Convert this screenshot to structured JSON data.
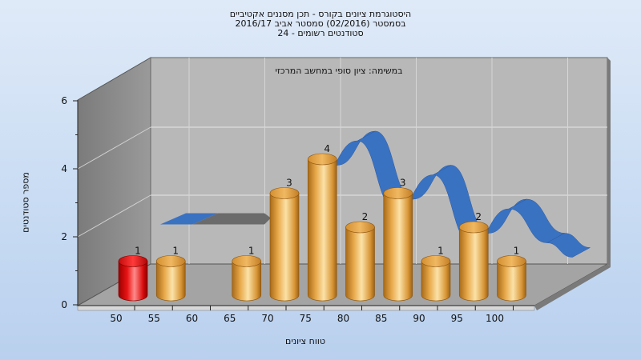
{
  "chart_data": {
    "type": "bar",
    "title_lines": [
      "היסטוגרמת ציונים בקורס - תכן מסננים אקטיביים",
      "בסמסטר  (02/2016)  סמסטר אביב 2016/17",
      "סטודנטים רשומים - 24"
    ],
    "subtitle": "במשימה: ציון סופי במחשב המרכזי",
    "xlabel": "טווח ציונים",
    "ylabel": "מספר סטודנטים",
    "ylim": [
      0,
      6
    ],
    "y_ticks": [
      "0",
      "2",
      "4",
      "6"
    ],
    "x_ticks": [
      "50",
      "55",
      "60",
      "65",
      "70",
      "75",
      "80",
      "85",
      "90",
      "95",
      "100"
    ],
    "series": [
      {
        "values": [
          {
            "x": 50,
            "y": 1,
            "label": "1"
          },
          {
            "x": 55,
            "y": 1,
            "label": "1"
          },
          {
            "x": 65,
            "y": 1,
            "label": "1"
          },
          {
            "x": 70,
            "y": 3,
            "label": "3"
          },
          {
            "x": 75,
            "y": 4,
            "label": "4"
          },
          {
            "x": 80,
            "y": 2,
            "label": "2"
          },
          {
            "x": 85,
            "y": 3,
            "label": "3"
          },
          {
            "x": 90,
            "y": 1,
            "label": "1"
          },
          {
            "x": 95,
            "y": 2,
            "label": "2"
          },
          {
            "x": 100,
            "y": 1,
            "label": "1"
          }
        ]
      }
    ],
    "highlight_x": 50,
    "colors": {
      "bar": "#e8a94a",
      "bar_highlight": "#e81414",
      "ribbon": "#3a72c2",
      "ribbon_flat": "#6b6b6b",
      "back_wall": "#b8b8b8",
      "side_wall": "#8c8c8c",
      "floor": "#a4a4a4"
    },
    "grid": true,
    "style": "3d"
  }
}
